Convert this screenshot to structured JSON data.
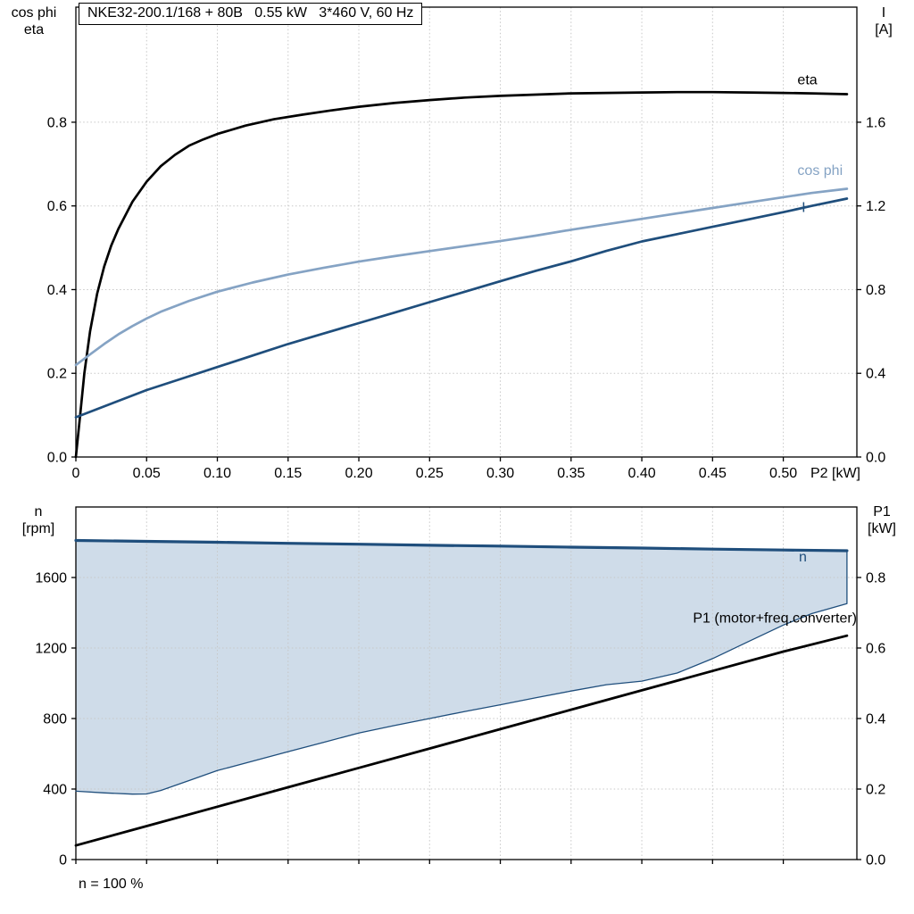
{
  "footer_note": "n = 100 %",
  "chart_data": [
    {
      "type": "line",
      "name": "p2-performance-chart",
      "title": "NKE32-200.1/168 + 80B   0.55 kW   3*460 V, 60 Hz",
      "xlabel": "P2 [kW]",
      "ylabel_left": "cos phi\neta",
      "ylabel_right": "I\n[A]",
      "xlim": [
        0,
        0.552
      ],
      "ylim_left": [
        0,
        1.075
      ],
      "ylim_right": [
        0,
        2.15
      ],
      "grid": true,
      "xticks": {
        "values": [
          0,
          0.05,
          0.1,
          0.15,
          0.2,
          0.25,
          0.3,
          0.35,
          0.4,
          0.45,
          0.5
        ],
        "labels": [
          "0",
          "0.05",
          "0.10",
          "0.15",
          "0.20",
          "0.25",
          "0.30",
          "0.35",
          "0.40",
          "0.45",
          "0.50"
        ]
      },
      "yticks_left": {
        "values": [
          0,
          0.2,
          0.4,
          0.6,
          0.8
        ],
        "labels": [
          "0.0",
          "0.2",
          "0.4",
          "0.6",
          "0.8"
        ]
      },
      "yticks_right": {
        "values": [
          0,
          0.4,
          0.8,
          1.2,
          1.6
        ],
        "labels": [
          "0.0",
          "0.4",
          "0.8",
          "1.2",
          "1.6"
        ]
      },
      "series": [
        {
          "name": "eta",
          "axis": "left",
          "color": "#000000",
          "width": 2.7,
          "points": [
            [
              0,
              0
            ],
            [
              0.003,
              0.1
            ],
            [
              0.006,
              0.2
            ],
            [
              0.01,
              0.3
            ],
            [
              0.015,
              0.39
            ],
            [
              0.02,
              0.455
            ],
            [
              0.025,
              0.505
            ],
            [
              0.03,
              0.545
            ],
            [
              0.04,
              0.61
            ],
            [
              0.05,
              0.658
            ],
            [
              0.06,
              0.695
            ],
            [
              0.07,
              0.722
            ],
            [
              0.08,
              0.744
            ],
            [
              0.09,
              0.759
            ],
            [
              0.1,
              0.772
            ],
            [
              0.12,
              0.792
            ],
            [
              0.14,
              0.807
            ],
            [
              0.16,
              0.818
            ],
            [
              0.18,
              0.828
            ],
            [
              0.2,
              0.837
            ],
            [
              0.225,
              0.846
            ],
            [
              0.25,
              0.853
            ],
            [
              0.275,
              0.859
            ],
            [
              0.3,
              0.863
            ],
            [
              0.325,
              0.866
            ],
            [
              0.35,
              0.869
            ],
            [
              0.375,
              0.87
            ],
            [
              0.4,
              0.871
            ],
            [
              0.425,
              0.872
            ],
            [
              0.45,
              0.872
            ],
            [
              0.475,
              0.871
            ],
            [
              0.5,
              0.87
            ],
            [
              0.52,
              0.869
            ],
            [
              0.545,
              0.867
            ]
          ]
        },
        {
          "name": "cos-phi",
          "axis": "left",
          "color": "#85a3c4",
          "width": 2.7,
          "points": [
            [
              0,
              0.22
            ],
            [
              0.01,
              0.245
            ],
            [
              0.02,
              0.27
            ],
            [
              0.03,
              0.293
            ],
            [
              0.04,
              0.313
            ],
            [
              0.05,
              0.331
            ],
            [
              0.06,
              0.347
            ],
            [
              0.08,
              0.373
            ],
            [
              0.1,
              0.395
            ],
            [
              0.125,
              0.417
            ],
            [
              0.15,
              0.436
            ],
            [
              0.175,
              0.452
            ],
            [
              0.2,
              0.467
            ],
            [
              0.225,
              0.48
            ],
            [
              0.25,
              0.492
            ],
            [
              0.275,
              0.504
            ],
            [
              0.3,
              0.516
            ],
            [
              0.325,
              0.529
            ],
            [
              0.35,
              0.543
            ],
            [
              0.375,
              0.556
            ],
            [
              0.4,
              0.569
            ],
            [
              0.425,
              0.582
            ],
            [
              0.45,
              0.595
            ],
            [
              0.475,
              0.608
            ],
            [
              0.5,
              0.621
            ],
            [
              0.52,
              0.631
            ],
            [
              0.545,
              0.641
            ]
          ]
        },
        {
          "name": "current",
          "axis": "right",
          "color": "#1f4e7c",
          "width": 2.7,
          "points": [
            [
              0,
              0.19
            ],
            [
              0.025,
              0.255
            ],
            [
              0.05,
              0.32
            ],
            [
              0.075,
              0.375
            ],
            [
              0.1,
              0.43
            ],
            [
              0.125,
              0.485
            ],
            [
              0.15,
              0.54
            ],
            [
              0.175,
              0.59
            ],
            [
              0.2,
              0.64
            ],
            [
              0.225,
              0.69
            ],
            [
              0.25,
              0.74
            ],
            [
              0.275,
              0.79
            ],
            [
              0.3,
              0.84
            ],
            [
              0.325,
              0.89
            ],
            [
              0.35,
              0.935
            ],
            [
              0.375,
              0.985
            ],
            [
              0.4,
              1.03
            ],
            [
              0.425,
              1.065
            ],
            [
              0.45,
              1.1
            ],
            [
              0.475,
              1.135
            ],
            [
              0.5,
              1.17
            ],
            [
              0.52,
              1.2
            ],
            [
              0.545,
              1.235
            ]
          ]
        }
      ],
      "annotations": [
        {
          "name": "eta-curve-label",
          "text": "eta",
          "x": 0.51,
          "y": 0.89,
          "color": "#000000",
          "anchor": "start"
        },
        {
          "name": "cos-phi-curve-label",
          "text": "cos phi",
          "x": 0.51,
          "y": 0.674,
          "color": "#85a3c4",
          "anchor": "start"
        },
        {
          "name": "current-curve-label",
          "text": "I",
          "x": 0.513,
          "y": 0.585,
          "color": "#1f4e7c",
          "anchor": "start"
        }
      ]
    },
    {
      "type": "line",
      "name": "speed-power-chart",
      "xlabel": "",
      "ylabel_left": "n\n[rpm]",
      "ylabel_right": "P1\n[kW]",
      "xlim": [
        0,
        0.552
      ],
      "ylim_left": [
        0,
        2000
      ],
      "ylim_right": [
        0,
        1.0
      ],
      "grid": true,
      "xticks": {
        "values": [
          0,
          0.05,
          0.1,
          0.15,
          0.2,
          0.25,
          0.3,
          0.35,
          0.4,
          0.45,
          0.5
        ],
        "labels": []
      },
      "yticks_left": {
        "values": [
          0,
          400,
          800,
          1200,
          1600
        ],
        "labels": [
          "0",
          "400",
          "800",
          "1200",
          "1600"
        ]
      },
      "yticks_right": {
        "values": [
          0,
          0.2,
          0.4,
          0.6,
          0.8
        ],
        "labels": [
          "0.0",
          "0.2",
          "0.4",
          "0.6",
          "0.8"
        ]
      },
      "area": {
        "upper": "n",
        "lower": "n-lower",
        "fill": "#cfdce9"
      },
      "series": [
        {
          "name": "n-lower",
          "axis": "left",
          "color": "#1f4e7c",
          "width": 1.3,
          "points": [
            [
              0,
              388
            ],
            [
              0.02,
              378
            ],
            [
              0.04,
              371
            ],
            [
              0.05,
              372
            ],
            [
              0.06,
              392
            ],
            [
              0.08,
              448
            ],
            [
              0.1,
              505
            ],
            [
              0.125,
              558
            ],
            [
              0.15,
              612
            ],
            [
              0.175,
              665
            ],
            [
              0.2,
              718
            ],
            [
              0.225,
              760
            ],
            [
              0.25,
              800
            ],
            [
              0.275,
              840
            ],
            [
              0.3,
              878
            ],
            [
              0.325,
              918
            ],
            [
              0.35,
              956
            ],
            [
              0.375,
              992
            ],
            [
              0.4,
              1012
            ],
            [
              0.425,
              1058
            ],
            [
              0.45,
              1140
            ],
            [
              0.475,
              1235
            ],
            [
              0.5,
              1330
            ],
            [
              0.52,
              1395
            ],
            [
              0.545,
              1452
            ],
            [
              0.545,
              1748
            ]
          ]
        },
        {
          "name": "n",
          "axis": "left",
          "color": "#1f4e7c",
          "width": 3.2,
          "points": [
            [
              0,
              1810
            ],
            [
              0.05,
              1805
            ],
            [
              0.1,
              1800
            ],
            [
              0.15,
              1794
            ],
            [
              0.2,
              1789
            ],
            [
              0.25,
              1783
            ],
            [
              0.3,
              1778
            ],
            [
              0.35,
              1772
            ],
            [
              0.4,
              1767
            ],
            [
              0.45,
              1761
            ],
            [
              0.5,
              1756
            ],
            [
              0.545,
              1752
            ]
          ]
        },
        {
          "name": "p1",
          "axis": "right",
          "color": "#000000",
          "width": 2.8,
          "points": [
            [
              0,
              0.04
            ],
            [
              0.05,
              0.095
            ],
            [
              0.1,
              0.15
            ],
            [
              0.15,
              0.205
            ],
            [
              0.2,
              0.26
            ],
            [
              0.25,
              0.315
            ],
            [
              0.3,
              0.37
            ],
            [
              0.35,
              0.425
            ],
            [
              0.4,
              0.48
            ],
            [
              0.45,
              0.535
            ],
            [
              0.5,
              0.59
            ],
            [
              0.545,
              0.635
            ]
          ]
        }
      ],
      "annotations": [
        {
          "name": "speed-curve-label",
          "text": "n",
          "x": 0.511,
          "y": 1690,
          "color": "#1f4e7c",
          "anchor": "start"
        },
        {
          "name": "p1-curve-label",
          "text": "P1 (motor+freq.converter)",
          "x": 0.552,
          "y": 1345,
          "color": "#000000",
          "anchor": "end"
        }
      ]
    }
  ]
}
